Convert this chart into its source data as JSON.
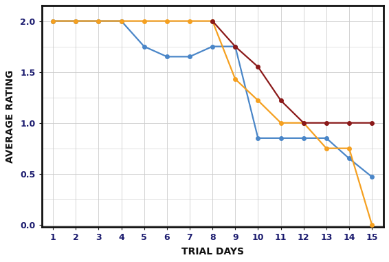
{
  "blue_x": [
    1,
    2,
    3,
    4,
    5,
    6,
    7,
    8,
    9,
    10,
    11,
    12,
    13,
    14,
    15
  ],
  "blue_y": [
    2.0,
    2.0,
    2.0,
    2.0,
    1.75,
    1.65,
    1.65,
    1.75,
    1.75,
    0.85,
    0.85,
    0.85,
    0.85,
    0.65,
    0.47
  ],
  "orange_x": [
    1,
    2,
    3,
    4,
    5,
    6,
    7,
    8,
    9,
    10,
    11,
    12,
    13,
    14,
    15
  ],
  "orange_y": [
    2.0,
    2.0,
    2.0,
    2.0,
    2.0,
    2.0,
    2.0,
    2.0,
    1.43,
    1.22,
    1.0,
    1.0,
    0.75,
    0.75,
    0.0
  ],
  "darkred_x": [
    8,
    9,
    10,
    11,
    12,
    13,
    14,
    15
  ],
  "darkred_y": [
    2.0,
    1.75,
    1.55,
    1.22,
    1.0,
    1.0,
    1.0,
    1.0
  ],
  "blue_color": "#4a86c8",
  "orange_color": "#f5a020",
  "darkred_color": "#8b1a1a",
  "xlabel": "TRIAL DAYS",
  "ylabel": "AVERAGE RATING",
  "xlim": [
    0.5,
    15.5
  ],
  "ylim": [
    -0.02,
    2.15
  ],
  "xticks": [
    1,
    2,
    3,
    4,
    5,
    6,
    7,
    8,
    9,
    10,
    11,
    12,
    13,
    14,
    15
  ],
  "yticks": [
    0.0,
    0.5,
    1.0,
    1.5,
    2.0
  ],
  "marker": "o",
  "markersize": 4,
  "linewidth": 1.6,
  "bg_color": "#ffffff",
  "plot_bg_color": "#ffffff",
  "grid_color": "#cccccc",
  "spine_color": "#111111",
  "axis_label_fontsize": 10,
  "tick_fontsize": 9,
  "tick_label_color": "#1a1a6e",
  "axis_label_color": "#111111"
}
